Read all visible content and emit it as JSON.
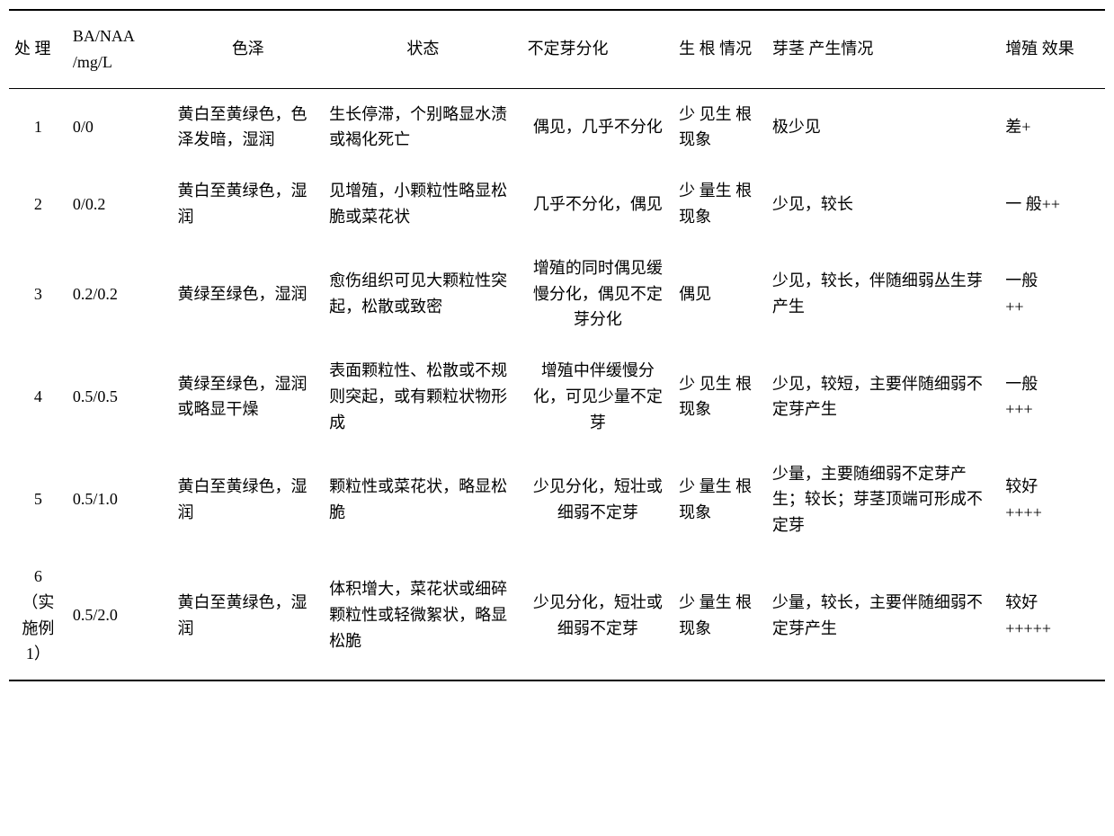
{
  "headers": [
    "处\n理",
    "BA/NAA\n/mg/L",
    "色泽",
    "状态",
    "不定芽分化",
    "生 根\n情况",
    "芽茎\n产生情况",
    "增殖\n效果"
  ],
  "rows": [
    {
      "treatment": "1",
      "ba_naa": "0/0",
      "color": "黄白至黄绿色，色泽发暗，湿润",
      "state": "生长停滞，个别略显水渍或褐化死亡",
      "diff": "偶见，几乎不分化",
      "root": "少 见生 根现象",
      "stem": "极少见",
      "effect": "差+"
    },
    {
      "treatment": "2",
      "ba_naa": "0/0.2",
      "color": "黄白至黄绿色，湿润",
      "state": "见增殖，小颗粒性略显松脆或菜花状",
      "diff": "几乎不分化，偶见",
      "root": "少 量生 根现象",
      "stem": "少见，较长",
      "effect": "一 般++"
    },
    {
      "treatment": "3",
      "ba_naa": "0.2/0.2",
      "color": "黄绿至绿色，湿润",
      "state": "愈伤组织可见大颗粒性突起，松散或致密",
      "diff": "增殖的同时偶见缓慢分化，偶见不定芽分化",
      "root": "偶见",
      "stem": "少见，较长，伴随细弱丛生芽产生",
      "effect": "一般\n  ++"
    },
    {
      "treatment": "4",
      "ba_naa": "0.5/0.5",
      "color": "黄绿至绿色，湿润或略显干燥",
      "state": "表面颗粒性、松散或不规则突起，或有颗粒状物形成",
      "diff": "增殖中伴缓慢分化，可见少量不定芽",
      "root": "少 见生 根现象",
      "stem": "少见，较短，主要伴随细弱不定芽产生",
      "effect": "一般\n   +++"
    },
    {
      "treatment": "5",
      "ba_naa": "0.5/1.0",
      "color": "黄白至黄绿色，湿润",
      "state": "颗粒性或菜花状，略显松脆",
      "diff": "少见分化，短壮或细弱不定芽",
      "root": "少 量生 根现象",
      "stem": "少量，主要随细弱不定芽产生；较长；芽茎顶端可形成不定芽",
      "effect": "较好\n++++"
    },
    {
      "treatment": "6\n（实施例1）",
      "ba_naa": "0.5/2.0",
      "color": "黄白至黄绿色，湿润",
      "state": "体积增大，菜花状或细碎颗粒性或轻微絮状，略显松脆",
      "diff": "少见分化，短壮或细弱不定芽",
      "root": "少 量生 根现象",
      "stem": "少量，较长，主要伴随细弱不定芽产生",
      "effect": "较好\n+++++"
    }
  ]
}
